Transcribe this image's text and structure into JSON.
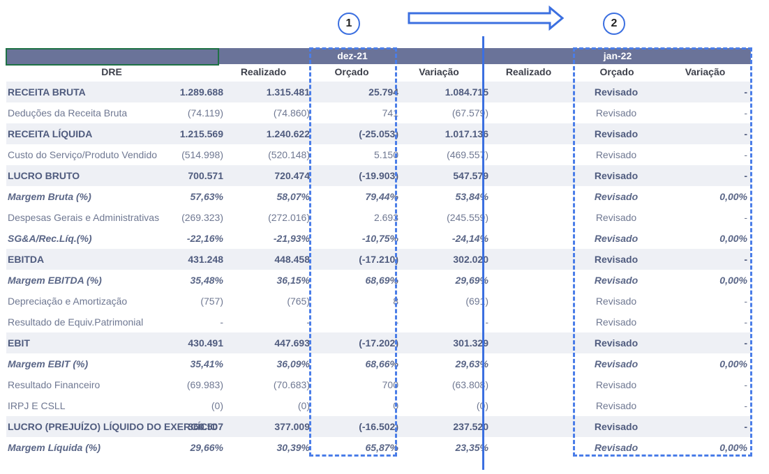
{
  "header": {
    "month1": "dez-21",
    "month2": "jan-22",
    "dre_label": "DRE",
    "columns": [
      "Realizado",
      "Orçado",
      "Variação",
      "Realizado",
      "Orçado",
      "Variação"
    ]
  },
  "annotations": {
    "circle1": "1",
    "circle2": "2"
  },
  "colors": {
    "header_bar": "#6a7399",
    "accent_blue": "#3b6fe0",
    "row_shade": "#eef0f5"
  },
  "rows": [
    {
      "label": "RECEITA BRUTA",
      "v": [
        "1.289.688",
        "1.315.481",
        "25.794",
        "1.084.715",
        "Revisado",
        "-"
      ]
    },
    {
      "label": "Deduções da Receita Bruta",
      "v": [
        "(74.119)",
        "(74.860)",
        "741",
        "(67.579)",
        "Revisado",
        "-"
      ]
    },
    {
      "label": "RECEITA LÍQUIDA",
      "v": [
        "1.215.569",
        "1.240.622",
        "(-25.053)",
        "1.017.136",
        "Revisado",
        "-"
      ]
    },
    {
      "label": "Custo do Serviço/Produto Vendido",
      "v": [
        "(514.998)",
        "(520.148)",
        "5.150",
        "(469.557)",
        "Revisado",
        "-"
      ]
    },
    {
      "label": "LUCRO BRUTO",
      "v": [
        "700.571",
        "720.474",
        "(-19.903)",
        "547.579",
        "Revisado",
        "-"
      ]
    },
    {
      "label": "Margem Bruta (%)",
      "v": [
        "57,63%",
        "58,07%",
        "79,44%",
        "53,84%",
        "Revisado",
        "0,00%"
      ]
    },
    {
      "label": "Despesas Gerais e Administrativas",
      "v": [
        "(269.323)",
        "(272.016)",
        "2.693",
        "(245.559)",
        "Revisado",
        "-"
      ]
    },
    {
      "label": "SG&A/Rec.Líq.(%)",
      "v": [
        "-22,16%",
        "-21,93%",
        "-10,75%",
        "-24,14%",
        "Revisado",
        "0,00%"
      ]
    },
    {
      "label": "EBITDA",
      "v": [
        "431.248",
        "448.458",
        "(-17.210)",
        "302.020",
        "Revisado",
        "-"
      ]
    },
    {
      "label": "Margem EBITDA (%)",
      "v": [
        "35,48%",
        "36,15%",
        "68,69%",
        "29,69%",
        "Revisado",
        "0,00%"
      ]
    },
    {
      "label": "Depreciação e Amortização",
      "v": [
        "(757)",
        "(765)",
        "8",
        "(691)",
        "Revisado",
        "-"
      ]
    },
    {
      "label": "Resultado de Equiv.Patrimonial",
      "v": [
        "-",
        "-",
        "-",
        "-",
        "Revisado",
        "-"
      ]
    },
    {
      "label": "EBIT",
      "v": [
        "430.491",
        "447.693",
        "(-17.202)",
        "301.329",
        "Revisado",
        "-"
      ]
    },
    {
      "label": "Margem EBIT (%)",
      "v": [
        "35,41%",
        "36,09%",
        "68,66%",
        "29,63%",
        "Revisado",
        "0,00%"
      ]
    },
    {
      "label": "Resultado Financeiro",
      "v": [
        "(69.983)",
        "(70.683)",
        "700",
        "(63.808)",
        "Revisado",
        "-"
      ]
    },
    {
      "label": "IRPJ E CSLL",
      "v": [
        "(0)",
        "(0)",
        "0",
        "(0)",
        "Revisado",
        "-"
      ]
    },
    {
      "label": "LUCRO (PREJUÍZO) LÍQUIDO DO EXERCÍCIO",
      "v": [
        "360.507",
        "377.009",
        "(-16.502)",
        "237.520",
        "Revisado",
        "-"
      ]
    },
    {
      "label": "Margem Líquida (%)",
      "v": [
        "29,66%",
        "30,39%",
        "65,87%",
        "23,35%",
        "Revisado",
        "0,00%"
      ]
    }
  ]
}
